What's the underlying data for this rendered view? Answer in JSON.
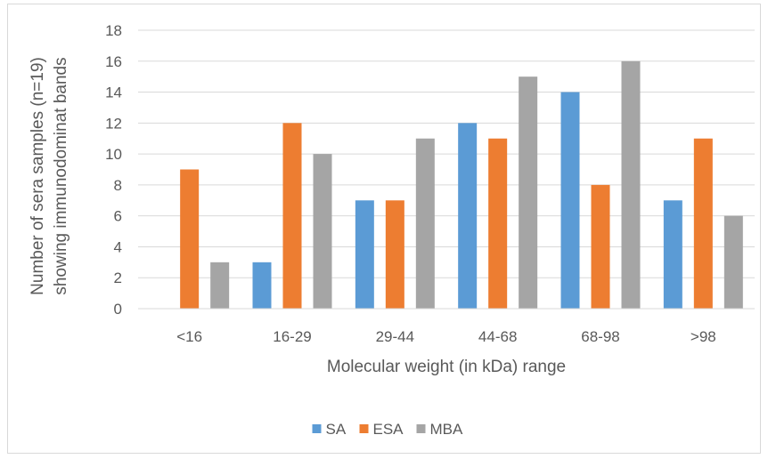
{
  "chart_data": {
    "type": "bar",
    "title": "",
    "xlabel": "Molecular weight (in kDa) range",
    "ylabel_lines": [
      "Number of sera samples (n=19)",
      "showing immunodominat bands"
    ],
    "categories": [
      "<16",
      "16-29",
      "29-44",
      "44-68",
      "68-98",
      ">98"
    ],
    "yticks": [
      "0",
      "2",
      "4",
      "6",
      "8",
      "10",
      "12",
      "14",
      "16",
      "18"
    ],
    "ylim": [
      0,
      18
    ],
    "grid": true,
    "legend_position": "bottom",
    "series": [
      {
        "name": "SA",
        "color": "#5b9bd5",
        "values": [
          0,
          3,
          7,
          12,
          14,
          7
        ]
      },
      {
        "name": "ESA",
        "color": "#ed7d31",
        "values": [
          9,
          12,
          7,
          11,
          8,
          11
        ]
      },
      {
        "name": "MBA",
        "color": "#a5a5a5",
        "values": [
          3,
          10,
          11,
          15,
          16,
          6
        ]
      }
    ]
  }
}
